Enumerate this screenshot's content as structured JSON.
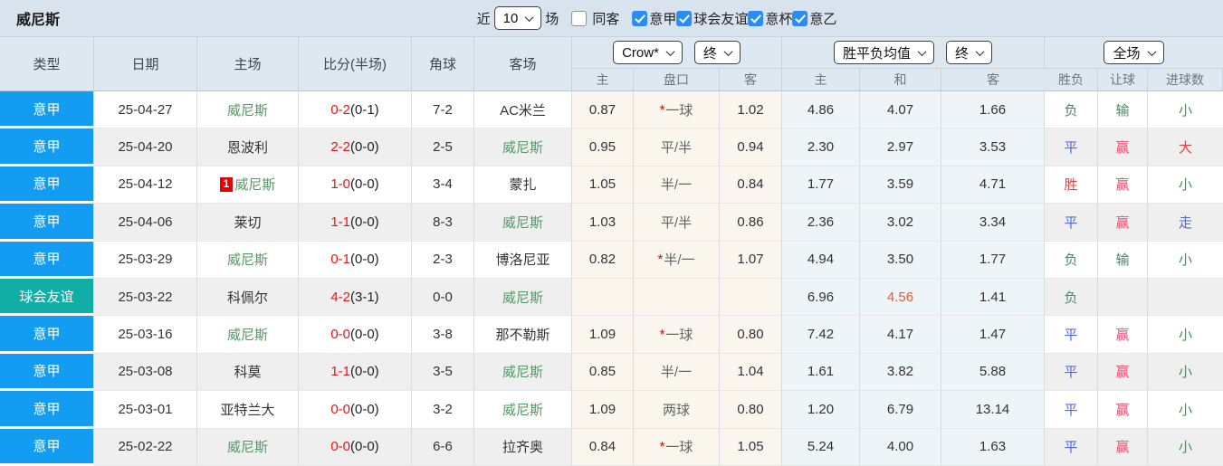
{
  "topbar": {
    "title": "威尼斯",
    "near_label": "近",
    "recent_count": "10",
    "matches_label": "场",
    "same_venue_label": "同客",
    "filters": [
      {
        "label": "意甲",
        "checked": true
      },
      {
        "label": "球会友谊",
        "checked": true
      },
      {
        "label": "意杯",
        "checked": true
      },
      {
        "label": "意乙",
        "checked": true
      }
    ]
  },
  "header": {
    "type": "类型",
    "date": "日期",
    "home": "主场",
    "score": "比分(半场)",
    "corner": "角球",
    "away": "客场",
    "odds_company_select": "Crow*",
    "odds_stage_select": "终",
    "sub_odds_home": "主",
    "sub_handicap": "盘口",
    "sub_odds_away": "客",
    "avg_select": "胜平负均值",
    "avg_stage_select": "终",
    "sub_avg_home": "主",
    "sub_avg_draw": "和",
    "sub_avg_away": "客",
    "scope_select": "全场",
    "sub_result": "胜负",
    "sub_let": "让球",
    "sub_goal": "进球数"
  },
  "rows": [
    {
      "league": "意甲",
      "date": "25-04-27",
      "home": "威尼斯",
      "score": "0-2",
      "half": "(0-1)",
      "corner": "7-2",
      "away": "AC米兰",
      "odds_home": "0.87",
      "star": "*",
      "handicap": "一球",
      "odds_away": "1.02",
      "avg_home": "4.86",
      "avg_draw": "4.07",
      "avg_away": "1.66",
      "result": "负",
      "let_result": "输",
      "goal_result": "小"
    },
    {
      "league": "意甲",
      "date": "25-04-20",
      "home": "恩波利",
      "score": "2-2",
      "half": "(0-0)",
      "corner": "2-5",
      "away": "威尼斯",
      "odds_home": "0.95",
      "handicap": "平/半",
      "odds_away": "0.94",
      "avg_home": "2.30",
      "avg_draw": "2.97",
      "avg_away": "3.53",
      "result": "平",
      "let_result": "赢",
      "goal_result": "大"
    },
    {
      "league": "意甲",
      "date": "25-04-12",
      "badge": "1",
      "home": "威尼斯",
      "score": "1-0",
      "half": "(0-0)",
      "corner": "3-4",
      "away": "蒙扎",
      "odds_home": "1.05",
      "handicap": "半/一",
      "odds_away": "0.84",
      "avg_home": "1.77",
      "avg_draw": "3.59",
      "avg_away": "4.71",
      "result": "胜",
      "let_result": "赢",
      "goal_result": "小"
    },
    {
      "league": "意甲",
      "date": "25-04-06",
      "home": "莱切",
      "score": "1-1",
      "half": "(0-0)",
      "corner": "8-3",
      "away": "威尼斯",
      "odds_home": "1.03",
      "handicap": "平/半",
      "odds_away": "0.86",
      "avg_home": "2.36",
      "avg_draw": "3.02",
      "avg_away": "3.34",
      "result": "平",
      "let_result": "赢",
      "goal_result": "走"
    },
    {
      "league": "意甲",
      "date": "25-03-29",
      "home": "威尼斯",
      "score": "0-1",
      "half": "(0-0)",
      "corner": "2-3",
      "away": "博洛尼亚",
      "odds_home": "0.82",
      "star": "*",
      "handicap": "半/一",
      "odds_away": "1.07",
      "avg_home": "4.94",
      "avg_draw": "3.50",
      "avg_away": "1.77",
      "result": "负",
      "let_result": "输",
      "goal_result": "小"
    },
    {
      "league": "球会友谊",
      "date": "25-03-22",
      "home": "科佩尔",
      "score": "4-2",
      "half": "(3-1)",
      "corner": "0-0",
      "away": "威尼斯",
      "odds_home": "",
      "handicap": "",
      "odds_away": "",
      "avg_home": "6.96",
      "avg_draw": "4.56",
      "avg_away": "1.41",
      "result": "负",
      "let_result": "",
      "goal_result": ""
    },
    {
      "league": "意甲",
      "date": "25-03-16",
      "home": "威尼斯",
      "score": "0-0",
      "half": "(0-0)",
      "corner": "3-8",
      "away": "那不勒斯",
      "odds_home": "1.09",
      "star": "*",
      "handicap": "一球",
      "odds_away": "0.80",
      "avg_home": "7.42",
      "avg_draw": "4.17",
      "avg_away": "1.47",
      "result": "平",
      "let_result": "赢",
      "goal_result": "小"
    },
    {
      "league": "意甲",
      "date": "25-03-08",
      "home": "科莫",
      "score": "1-1",
      "half": "(0-0)",
      "corner": "3-5",
      "away": "威尼斯",
      "odds_home": "0.85",
      "handicap": "半/一",
      "odds_away": "1.04",
      "avg_home": "1.61",
      "avg_draw": "3.82",
      "avg_away": "5.88",
      "result": "平",
      "let_result": "赢",
      "goal_result": "小"
    },
    {
      "league": "意甲",
      "date": "25-03-01",
      "home": "亚特兰大",
      "score": "0-0",
      "half": "(0-0)",
      "corner": "3-2",
      "away": "威尼斯",
      "odds_home": "1.09",
      "handicap": "两球",
      "odds_away": "0.80",
      "avg_home": "1.20",
      "avg_draw": "6.79",
      "avg_away": "13.14",
      "result": "平",
      "let_result": "赢",
      "goal_result": "小"
    },
    {
      "league": "意甲",
      "date": "25-02-22",
      "home": "威尼斯",
      "score": "0-0",
      "half": "(0-0)",
      "corner": "6-6",
      "away": "拉齐奥",
      "odds_home": "0.84",
      "star": "*",
      "handicap": "一球",
      "odds_away": "1.05",
      "avg_home": "5.24",
      "avg_draw": "4.00",
      "avg_away": "1.63",
      "result": "平",
      "let_result": "赢",
      "goal_result": "小"
    }
  ],
  "colors": {
    "league_serie_a_bg": "#129df2",
    "league_friendly_bg": "#12aea5",
    "score_red": "#f01010",
    "venezia_green": "#4e9a5e",
    "win_red": "#f23b3b",
    "cover_pink_red": "#f2486e",
    "draw_blue": "#4d66e8",
    "lose_green": "#4e8668",
    "under_green": "#2f9e44",
    "highlight_orange": "#f0572e",
    "badge_red": "#e60000",
    "odds_col_bg": "#fbf6ed",
    "avg_col_bg": "#edf5f9",
    "bar_bg": "#d8e3ed"
  }
}
